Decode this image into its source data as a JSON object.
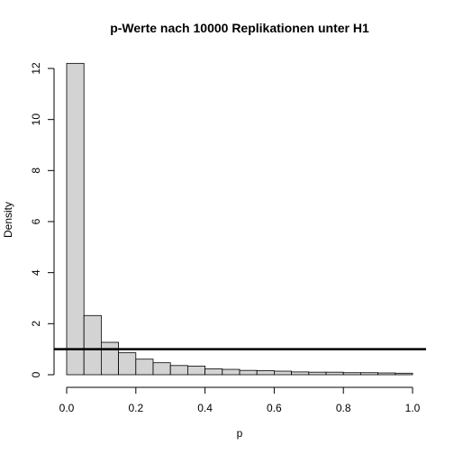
{
  "chart_data": {
    "type": "histogram",
    "title": "p-Werte nach 10000 Replikationen unter H1",
    "xlabel": "p",
    "ylabel": "Density",
    "xlim": [
      0,
      1
    ],
    "ylim": [
      0,
      12.2
    ],
    "x_ticks": [
      "0.0",
      "0.2",
      "0.4",
      "0.6",
      "0.8",
      "1.0"
    ],
    "x_tick_values": [
      0,
      0.2,
      0.4,
      0.6,
      0.8,
      1.0
    ],
    "y_ticks": [
      "0",
      "2",
      "4",
      "6",
      "8",
      "10",
      "12"
    ],
    "y_tick_values": [
      0,
      2,
      4,
      6,
      8,
      10,
      12
    ],
    "bin_width": 0.05,
    "bins": [
      0,
      0.05,
      0.1,
      0.15,
      0.2,
      0.25,
      0.3,
      0.35,
      0.4,
      0.45,
      0.5,
      0.55,
      0.6,
      0.65,
      0.7,
      0.75,
      0.8,
      0.85,
      0.9,
      0.95,
      1.0
    ],
    "density": [
      12.2,
      2.32,
      1.27,
      0.86,
      0.61,
      0.47,
      0.36,
      0.34,
      0.23,
      0.21,
      0.17,
      0.16,
      0.14,
      0.11,
      0.1,
      0.1,
      0.08,
      0.08,
      0.07,
      0.06
    ],
    "reference_line": {
      "y": 1,
      "orientation": "horizontal"
    },
    "grid": false,
    "colors": {
      "bar_fill": "#d3d3d3",
      "bar_stroke": "#000000",
      "line": "#000000"
    }
  }
}
